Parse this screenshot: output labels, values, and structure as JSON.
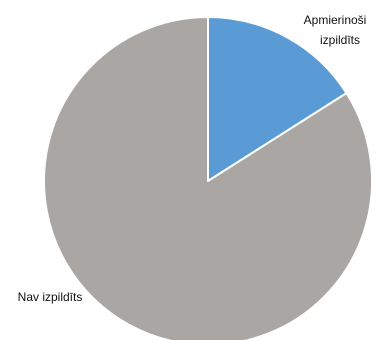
{
  "chart_data": {
    "type": "pie",
    "slices": [
      {
        "label_lines": [
          "Apmierinoši",
          "izpildīts"
        ],
        "value": 16,
        "color": "#5B9BD5"
      },
      {
        "label_lines": [
          "Nav izpildīts"
        ],
        "value": 84,
        "color": "#A9A6A4"
      }
    ],
    "legend": "none",
    "title": ""
  }
}
